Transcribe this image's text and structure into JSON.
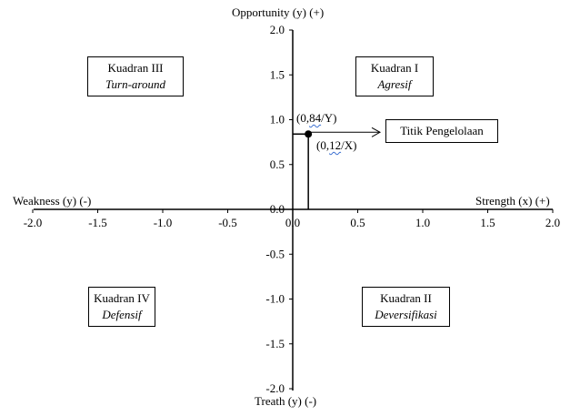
{
  "chart_data": {
    "type": "scatter",
    "x_ticks": [
      "-2.0",
      "-1.5",
      "-1.0",
      "-0.5",
      "0.0",
      "0.5",
      "1.0",
      "1.5",
      "2.0"
    ],
    "y_ticks": [
      "2.0",
      "1.5",
      "1.0",
      "0.5",
      "0.0",
      "-0.5",
      "-1.0",
      "-1.5",
      "-2.0"
    ],
    "xlim": [
      -2,
      2
    ],
    "ylim": [
      -2,
      2
    ],
    "grid": false,
    "axis_labels": {
      "top": "Opportunity (y) (+)",
      "bottom": "Treath (y) (-)",
      "left": "Weakness (y) (-)",
      "right": "Strength (x) (+)"
    },
    "point": {
      "x": 0.12,
      "y": 0.84
    },
    "point_labels": {
      "y_prefix": "(0,",
      "y_squiggle": "84",
      "y_suffix": "/Y)",
      "x_prefix": "(0,",
      "x_squiggle": "12",
      "x_suffix": "/X)"
    },
    "annotation": "Titik Pengelolaan",
    "quadrants": [
      {
        "id": "q1",
        "title": "Kuadran I",
        "subtitle": "Agresif"
      },
      {
        "id": "q2",
        "title": "Kuadran II",
        "subtitle": "Deversifikasi"
      },
      {
        "id": "q3",
        "title": "Kuadran III",
        "subtitle": "Turn-around"
      },
      {
        "id": "q4",
        "title": "Kuadran IV",
        "subtitle": "Defensif"
      }
    ]
  }
}
